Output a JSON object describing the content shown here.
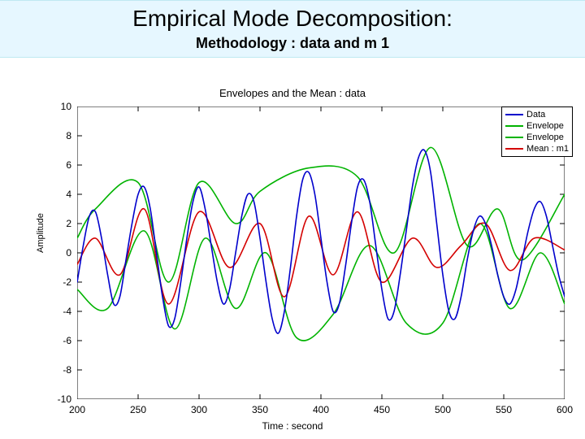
{
  "header": {
    "title": "Empirical Mode Decomposition:",
    "subtitle": "Methodology : data and m 1"
  },
  "chart": {
    "type": "line",
    "title": "Envelopes and the Mean : data",
    "xlabel": "Time : second",
    "ylabel": "Amplitude",
    "background_color": "#ffffff",
    "axis_color": "#000000",
    "xlim": [
      200,
      600
    ],
    "ylim": [
      -10,
      10
    ],
    "xtick_step": 50,
    "ytick_step": 2,
    "xticks": [
      200,
      250,
      300,
      350,
      400,
      450,
      500,
      550,
      600
    ],
    "yticks": [
      -10,
      -8,
      -6,
      -4,
      -2,
      0,
      2,
      4,
      6,
      8,
      10
    ],
    "line_width": 1.6,
    "legend": {
      "position": "upper-right",
      "items": [
        {
          "label": "Data",
          "color": "#0000cc"
        },
        {
          "label": "Envelope",
          "color": "#00b300"
        },
        {
          "label": "Envelope",
          "color": "#00b300"
        },
        {
          "label": "Mean : m1",
          "color": "#d40000"
        }
      ]
    },
    "series": {
      "data": {
        "label": "Data",
        "color": "#0000cc",
        "x": [
          200,
          205,
          210,
          215,
          220,
          225,
          230,
          235,
          240,
          245,
          250,
          255,
          260,
          265,
          270,
          275,
          280,
          285,
          290,
          295,
          300,
          305,
          310,
          315,
          320,
          325,
          330,
          335,
          340,
          345,
          350,
          355,
          360,
          365,
          370,
          375,
          380,
          385,
          390,
          395,
          400,
          405,
          410,
          415,
          420,
          425,
          430,
          435,
          440,
          445,
          450,
          455,
          460,
          465,
          470,
          475,
          480,
          485,
          490,
          495,
          500,
          505,
          510,
          515,
          520,
          525,
          530,
          535,
          540,
          545,
          550,
          555,
          560,
          565,
          570,
          575,
          580,
          585,
          590,
          595,
          600
        ],
        "y": [
          -2.0,
          0.5,
          2.5,
          2.8,
          1.0,
          -1.5,
          -3.5,
          -3.0,
          -0.5,
          2.0,
          4.0,
          4.5,
          3.0,
          0.0,
          -3.0,
          -5.0,
          -4.5,
          -2.0,
          1.0,
          3.5,
          4.5,
          3.0,
          0.5,
          -2.0,
          -3.5,
          -2.5,
          0.0,
          2.5,
          4.0,
          3.5,
          1.0,
          -2.0,
          -4.5,
          -5.5,
          -4.0,
          -1.0,
          2.5,
          5.0,
          5.5,
          4.0,
          1.0,
          -2.0,
          -4.0,
          -3.5,
          -1.0,
          2.0,
          4.5,
          5.0,
          3.5,
          0.5,
          -2.5,
          -4.5,
          -4.0,
          -1.5,
          1.5,
          4.5,
          6.5,
          7.0,
          5.5,
          2.0,
          -1.5,
          -4.0,
          -4.5,
          -3.0,
          -0.5,
          1.5,
          2.5,
          2.0,
          0.5,
          -1.5,
          -3.0,
          -3.5,
          -2.5,
          -0.5,
          1.5,
          3.0,
          3.5,
          2.5,
          0.5,
          -1.5,
          -3.0
        ]
      },
      "env_upper": {
        "label": "Envelope",
        "color": "#00b300",
        "x": [
          200,
          215,
          250,
          275,
          300,
          330,
          350,
          390,
          430,
          460,
          490,
          520,
          545,
          565,
          600
        ],
        "y": [
          1.0,
          3.0,
          4.8,
          -2.0,
          4.8,
          2.0,
          4.2,
          5.8,
          5.2,
          0.0,
          7.2,
          0.5,
          3.0,
          -0.5,
          4.0
        ]
      },
      "env_lower": {
        "label": "Envelope",
        "color": "#00b300",
        "x": [
          200,
          225,
          255,
          280,
          305,
          330,
          355,
          380,
          410,
          440,
          470,
          500,
          530,
          555,
          580,
          600
        ],
        "y": [
          -2.5,
          -3.8,
          1.5,
          -5.2,
          1.0,
          -3.8,
          0.0,
          -5.8,
          -4.2,
          0.5,
          -4.8,
          -4.8,
          2.0,
          -3.8,
          0.0,
          -3.5
        ]
      },
      "mean_m1": {
        "label": "Mean : m1",
        "color": "#d40000",
        "x": [
          200,
          215,
          235,
          255,
          275,
          300,
          325,
          350,
          370,
          390,
          410,
          430,
          450,
          475,
          495,
          515,
          535,
          555,
          575,
          600
        ],
        "y": [
          -0.8,
          1.0,
          -1.5,
          3.0,
          -3.5,
          2.8,
          -1.0,
          2.0,
          -3.0,
          2.5,
          -1.5,
          2.8,
          -2.0,
          1.0,
          -1.0,
          0.5,
          2.0,
          -1.2,
          1.0,
          0.2
        ]
      }
    }
  }
}
